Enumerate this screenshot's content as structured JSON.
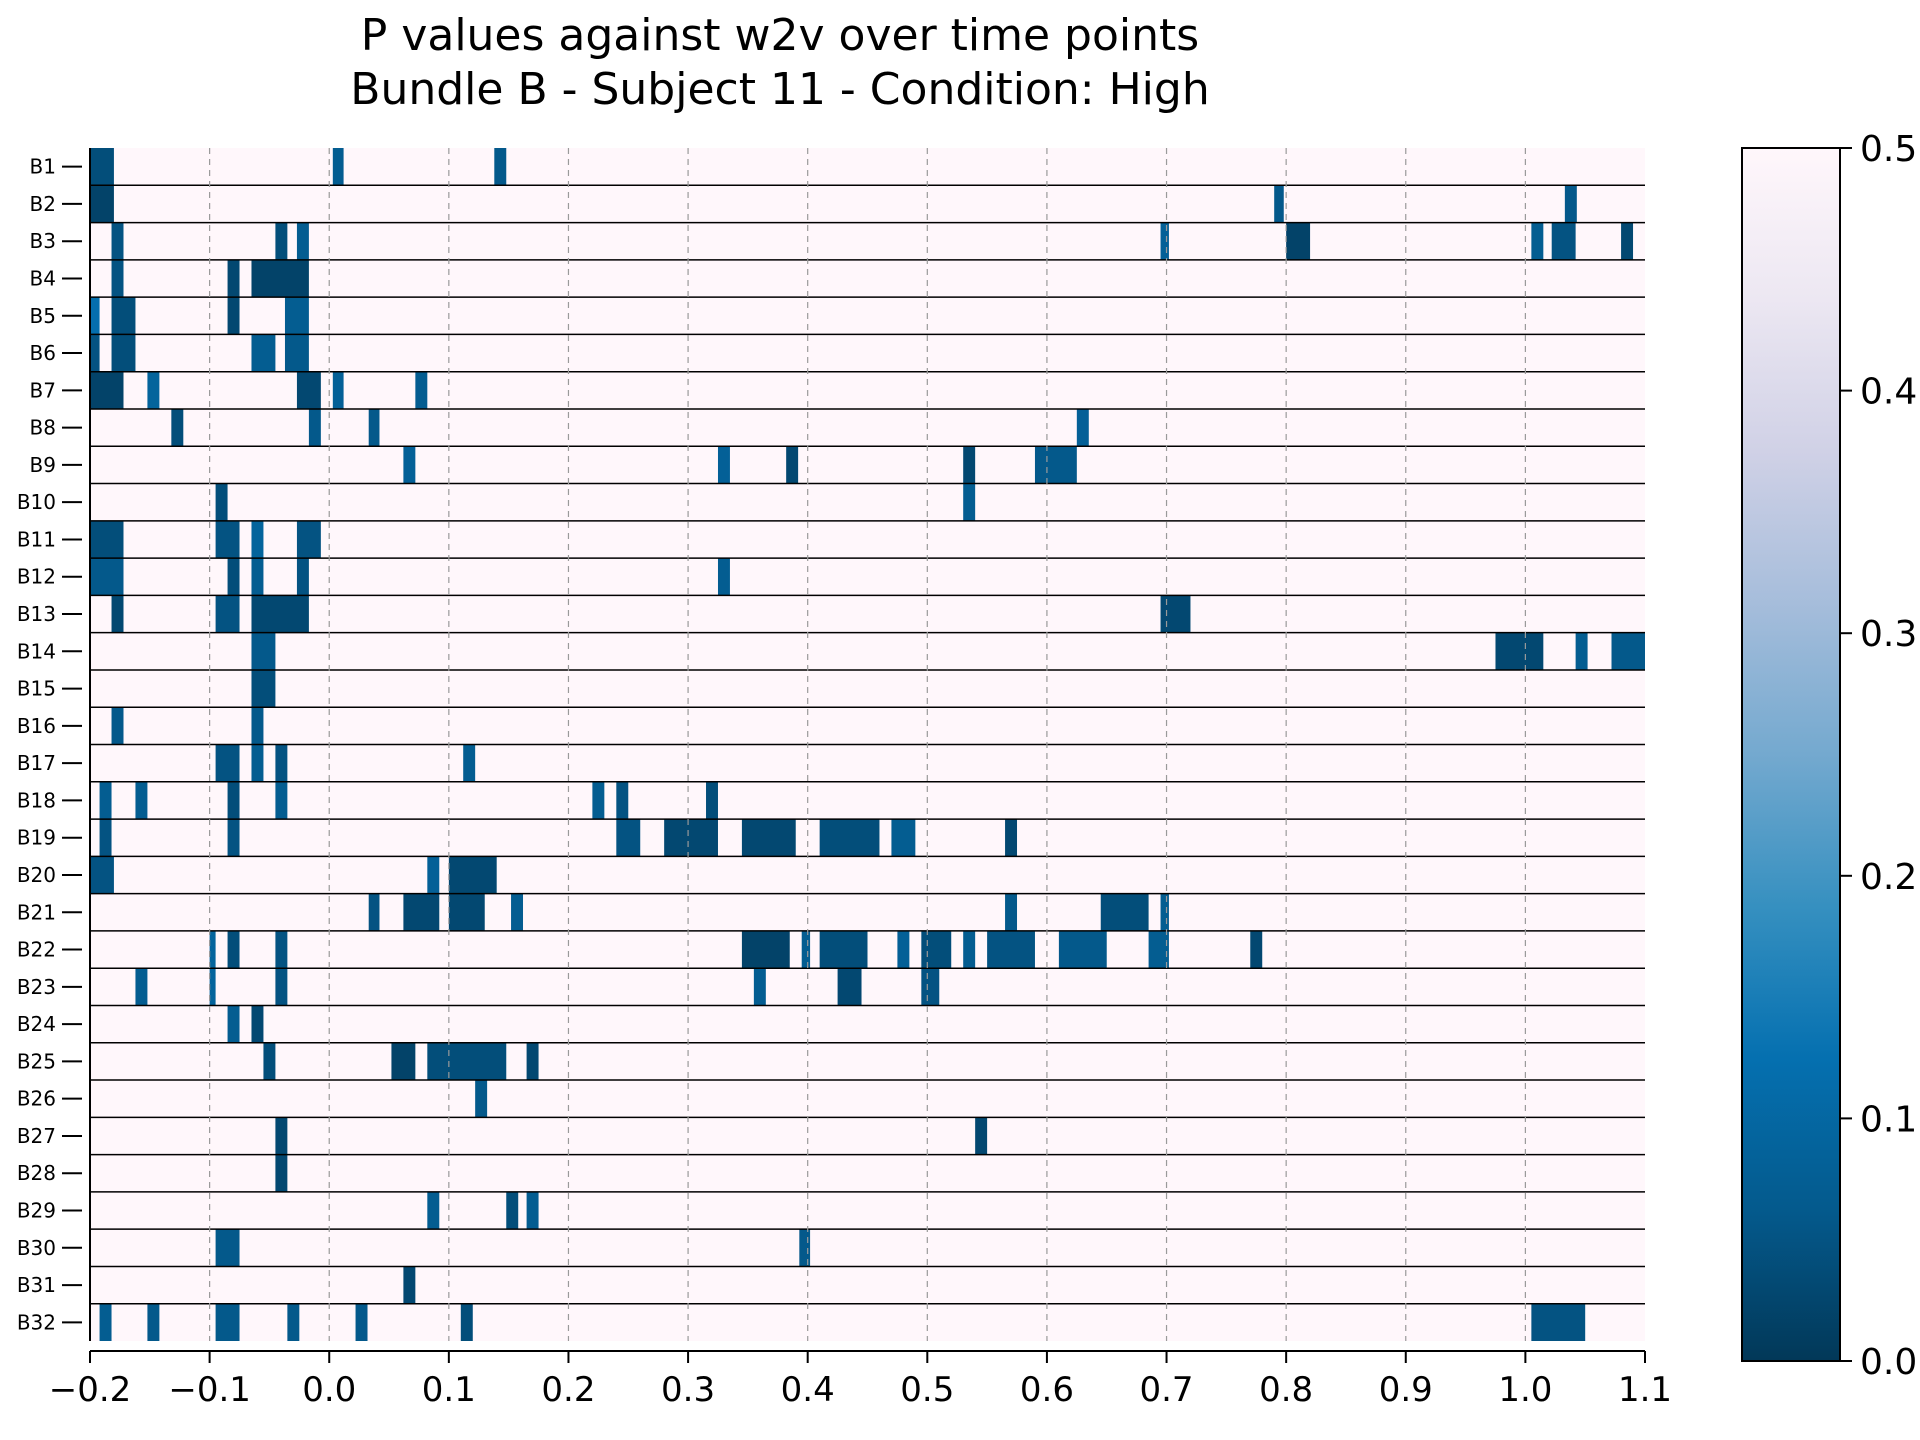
{
  "chart_data": {
    "type": "heatmap",
    "title_line1": "P values against w2v over time points",
    "title_line2": "Bundle B - Subject 11 - Condition: High",
    "xlim": [
      -0.2,
      1.1
    ],
    "x_ticks": [
      -0.2,
      -0.1,
      0.0,
      0.1,
      0.2,
      0.3,
      0.4,
      0.5,
      0.6,
      0.7,
      0.8,
      0.9,
      1.0,
      1.1
    ],
    "x_tick_labels": [
      "−0.2",
      "−0.1",
      "0.0",
      "0.1",
      "0.2",
      "0.3",
      "0.4",
      "0.5",
      "0.6",
      "0.7",
      "0.8",
      "0.9",
      "1.0",
      "1.1"
    ],
    "grid_x": [
      -0.1,
      0.0,
      0.1,
      0.2,
      0.3,
      0.4,
      0.5,
      0.6,
      0.7,
      0.8,
      0.9,
      1.0
    ],
    "colorbar": {
      "min": 0.0,
      "max": 0.5,
      "ticks": [
        0.0,
        0.1,
        0.2,
        0.3,
        0.4,
        0.5
      ],
      "tick_labels": [
        "0.0",
        "0.1",
        "0.2",
        "0.3",
        "0.4",
        "0.5"
      ],
      "colors_low_to_high": [
        "#023858",
        "#045a8d",
        "#0570b0",
        "#3690c0",
        "#74a9cf",
        "#a6bddb",
        "#d0d1e6",
        "#ece7f2",
        "#fff7fb"
      ],
      "background_value": 0.5
    },
    "rows": [
      {
        "label": "B1",
        "segments": [
          [
            -0.2,
            -0.18,
            0.04
          ],
          [
            0.003,
            0.012,
            0.07
          ],
          [
            0.138,
            0.148,
            0.06
          ]
        ]
      },
      {
        "label": "B2",
        "segments": [
          [
            -0.2,
            -0.18,
            0.02
          ],
          [
            0.79,
            0.798,
            0.06
          ],
          [
            1.033,
            1.043,
            0.06
          ]
        ]
      },
      {
        "label": "B3",
        "segments": [
          [
            -0.182,
            -0.172,
            0.05
          ],
          [
            -0.045,
            -0.035,
            0.04
          ],
          [
            -0.027,
            -0.017,
            0.07
          ],
          [
            0.695,
            0.702,
            0.08
          ],
          [
            0.8,
            0.82,
            0.02
          ],
          [
            1.005,
            1.015,
            0.07
          ],
          [
            1.022,
            1.042,
            0.05
          ],
          [
            1.08,
            1.09,
            0.03
          ]
        ]
      },
      {
        "label": "B4",
        "segments": [
          [
            -0.182,
            -0.172,
            0.05
          ],
          [
            -0.085,
            -0.075,
            0.03
          ],
          [
            -0.065,
            -0.017,
            0.02
          ]
        ]
      },
      {
        "label": "B5",
        "segments": [
          [
            -0.2,
            -0.192,
            0.12
          ],
          [
            -0.182,
            -0.162,
            0.04
          ],
          [
            -0.085,
            -0.075,
            0.03
          ],
          [
            -0.037,
            -0.017,
            0.07
          ]
        ]
      },
      {
        "label": "B6",
        "segments": [
          [
            -0.2,
            -0.192,
            0.05
          ],
          [
            -0.182,
            -0.162,
            0.04
          ],
          [
            -0.065,
            -0.045,
            0.07
          ],
          [
            -0.037,
            -0.017,
            0.06
          ]
        ]
      },
      {
        "label": "B7",
        "segments": [
          [
            -0.2,
            -0.172,
            0.02
          ],
          [
            -0.152,
            -0.142,
            0.09
          ],
          [
            -0.027,
            -0.007,
            0.03
          ],
          [
            0.003,
            0.012,
            0.08
          ],
          [
            0.072,
            0.082,
            0.07
          ]
        ]
      },
      {
        "label": "B8",
        "segments": [
          [
            -0.132,
            -0.122,
            0.04
          ],
          [
            -0.017,
            -0.007,
            0.06
          ],
          [
            0.033,
            0.042,
            0.06
          ],
          [
            0.625,
            0.635,
            0.08
          ]
        ]
      },
      {
        "label": "B9",
        "segments": [
          [
            0.062,
            0.072,
            0.08
          ],
          [
            0.325,
            0.335,
            0.08
          ],
          [
            0.382,
            0.392,
            0.03
          ],
          [
            0.53,
            0.54,
            0.03
          ],
          [
            0.59,
            0.625,
            0.06
          ]
        ]
      },
      {
        "label": "B10",
        "segments": [
          [
            -0.095,
            -0.085,
            0.04
          ],
          [
            0.53,
            0.54,
            0.07
          ]
        ]
      },
      {
        "label": "B11",
        "segments": [
          [
            -0.2,
            -0.172,
            0.04
          ],
          [
            -0.095,
            -0.075,
            0.05
          ],
          [
            -0.065,
            -0.055,
            0.09
          ],
          [
            -0.027,
            -0.007,
            0.05
          ]
        ]
      },
      {
        "label": "B12",
        "segments": [
          [
            -0.2,
            -0.172,
            0.06
          ],
          [
            -0.085,
            -0.075,
            0.04
          ],
          [
            -0.065,
            -0.055,
            0.07
          ],
          [
            -0.027,
            -0.017,
            0.05
          ],
          [
            0.325,
            0.335,
            0.07
          ]
        ]
      },
      {
        "label": "B13",
        "segments": [
          [
            -0.182,
            -0.172,
            0.03
          ],
          [
            -0.095,
            -0.075,
            0.05
          ],
          [
            -0.065,
            -0.017,
            0.03
          ],
          [
            0.695,
            0.72,
            0.03
          ]
        ]
      },
      {
        "label": "B14",
        "segments": [
          [
            -0.065,
            -0.045,
            0.06
          ],
          [
            0.975,
            1.015,
            0.03
          ],
          [
            1.042,
            1.052,
            0.07
          ],
          [
            1.072,
            1.1,
            0.06
          ]
        ]
      },
      {
        "label": "B15",
        "segments": [
          [
            -0.065,
            -0.045,
            0.04
          ]
        ]
      },
      {
        "label": "B16",
        "segments": [
          [
            -0.182,
            -0.172,
            0.06
          ],
          [
            -0.065,
            -0.055,
            0.06
          ]
        ]
      },
      {
        "label": "B17",
        "segments": [
          [
            -0.095,
            -0.075,
            0.05
          ],
          [
            -0.065,
            -0.055,
            0.07
          ],
          [
            -0.045,
            -0.035,
            0.05
          ],
          [
            0.112,
            0.122,
            0.07
          ]
        ]
      },
      {
        "label": "B18",
        "segments": [
          [
            -0.192,
            -0.182,
            0.07
          ],
          [
            -0.162,
            -0.152,
            0.07
          ],
          [
            -0.085,
            -0.075,
            0.04
          ],
          [
            -0.045,
            -0.035,
            0.07
          ],
          [
            0.22,
            0.23,
            0.07
          ],
          [
            0.24,
            0.25,
            0.05
          ],
          [
            0.315,
            0.325,
            0.04
          ]
        ]
      },
      {
        "label": "B19",
        "segments": [
          [
            -0.192,
            -0.182,
            0.05
          ],
          [
            -0.085,
            -0.075,
            0.05
          ],
          [
            0.24,
            0.26,
            0.05
          ],
          [
            0.28,
            0.325,
            0.03
          ],
          [
            0.345,
            0.39,
            0.03
          ],
          [
            0.41,
            0.46,
            0.04
          ],
          [
            0.47,
            0.49,
            0.07
          ],
          [
            0.565,
            0.575,
            0.03
          ]
        ]
      },
      {
        "label": "B20",
        "segments": [
          [
            -0.2,
            -0.18,
            0.05
          ],
          [
            0.082,
            0.092,
            0.08
          ],
          [
            0.1,
            0.14,
            0.03
          ]
        ]
      },
      {
        "label": "B21",
        "segments": [
          [
            0.033,
            0.042,
            0.05
          ],
          [
            0.062,
            0.092,
            0.03
          ],
          [
            0.1,
            0.13,
            0.03
          ],
          [
            0.152,
            0.162,
            0.07
          ],
          [
            0.565,
            0.575,
            0.06
          ],
          [
            0.645,
            0.685,
            0.04
          ],
          [
            0.695,
            0.702,
            0.07
          ]
        ]
      },
      {
        "label": "B22",
        "segments": [
          [
            -0.1,
            -0.095,
            0.09
          ],
          [
            -0.085,
            -0.075,
            0.04
          ],
          [
            -0.045,
            -0.035,
            0.05
          ],
          [
            0.345,
            0.385,
            0.02
          ],
          [
            0.395,
            0.402,
            0.07
          ],
          [
            0.41,
            0.45,
            0.04
          ],
          [
            0.475,
            0.485,
            0.08
          ],
          [
            0.495,
            0.52,
            0.04
          ],
          [
            0.53,
            0.54,
            0.07
          ],
          [
            0.55,
            0.59,
            0.05
          ],
          [
            0.61,
            0.65,
            0.06
          ],
          [
            0.685,
            0.702,
            0.07
          ],
          [
            0.77,
            0.78,
            0.03
          ]
        ]
      },
      {
        "label": "B23",
        "segments": [
          [
            -0.162,
            -0.152,
            0.07
          ],
          [
            -0.1,
            -0.095,
            0.09
          ],
          [
            -0.045,
            -0.035,
            0.05
          ],
          [
            0.355,
            0.365,
            0.07
          ],
          [
            0.425,
            0.445,
            0.03
          ],
          [
            0.495,
            0.51,
            0.05
          ]
        ]
      },
      {
        "label": "B24",
        "segments": [
          [
            -0.085,
            -0.075,
            0.07
          ],
          [
            -0.065,
            -0.055,
            0.03
          ]
        ]
      },
      {
        "label": "B25",
        "segments": [
          [
            -0.055,
            -0.045,
            0.04
          ],
          [
            0.052,
            0.072,
            0.02
          ],
          [
            0.082,
            0.148,
            0.04
          ],
          [
            0.165,
            0.175,
            0.03
          ]
        ]
      },
      {
        "label": "B26",
        "segments": [
          [
            0.122,
            0.132,
            0.06
          ]
        ]
      },
      {
        "label": "B27",
        "segments": [
          [
            -0.045,
            -0.035,
            0.03
          ],
          [
            0.54,
            0.55,
            0.03
          ]
        ]
      },
      {
        "label": "B28",
        "segments": [
          [
            -0.045,
            -0.035,
            0.03
          ]
        ]
      },
      {
        "label": "B29",
        "segments": [
          [
            0.082,
            0.092,
            0.07
          ],
          [
            0.148,
            0.158,
            0.04
          ],
          [
            0.165,
            0.175,
            0.07
          ]
        ]
      },
      {
        "label": "B30",
        "segments": [
          [
            -0.095,
            -0.075,
            0.06
          ],
          [
            0.393,
            0.402,
            0.06
          ]
        ]
      },
      {
        "label": "B31",
        "segments": [
          [
            0.062,
            0.072,
            0.03
          ]
        ]
      },
      {
        "label": "B32",
        "segments": [
          [
            -0.192,
            -0.182,
            0.07
          ],
          [
            -0.152,
            -0.142,
            0.06
          ],
          [
            -0.095,
            -0.075,
            0.06
          ],
          [
            -0.035,
            -0.025,
            0.06
          ],
          [
            0.022,
            0.032,
            0.06
          ],
          [
            0.11,
            0.12,
            0.04
          ],
          [
            1.005,
            1.05,
            0.05
          ]
        ]
      }
    ]
  }
}
